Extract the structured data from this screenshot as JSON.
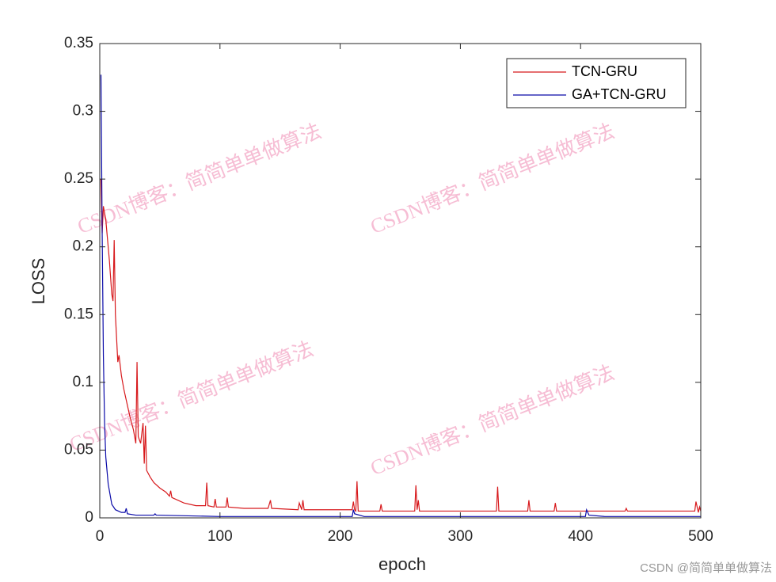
{
  "chart_data": {
    "type": "line",
    "xlabel": "epoch",
    "ylabel": "LOSS",
    "xlim": [
      0,
      500
    ],
    "xticks": [
      0,
      100,
      200,
      300,
      400,
      500
    ],
    "ylim": [
      0,
      0.35
    ],
    "yticks": [
      0,
      0.05,
      0.1,
      0.15,
      0.2,
      0.25,
      0.3,
      0.35
    ],
    "legend": "upper right",
    "series": [
      {
        "name": "TCN-GRU",
        "color": "#d7191c",
        "x": [
          1,
          2,
          3,
          5,
          8,
          10,
          11,
          12,
          13,
          15,
          16,
          18,
          20,
          25,
          28,
          30,
          31,
          32,
          34,
          36,
          37,
          38,
          39,
          42,
          45,
          50,
          55,
          58,
          59,
          60,
          70,
          80,
          88,
          89,
          90,
          95,
          96,
          97,
          105,
          106,
          107,
          120,
          140,
          142,
          143,
          165,
          166,
          168,
          169,
          170,
          210,
          211,
          212,
          213,
          214,
          215,
          233,
          234,
          235,
          262,
          263,
          264,
          265,
          266,
          330,
          331,
          332,
          356,
          357,
          358,
          378,
          379,
          380,
          437,
          438,
          439,
          495,
          496,
          498,
          499,
          500
        ],
        "values": [
          0.25,
          0.21,
          0.23,
          0.22,
          0.19,
          0.165,
          0.16,
          0.205,
          0.15,
          0.115,
          0.12,
          0.105,
          0.095,
          0.075,
          0.065,
          0.055,
          0.115,
          0.06,
          0.055,
          0.07,
          0.04,
          0.068,
          0.035,
          0.03,
          0.026,
          0.022,
          0.019,
          0.016,
          0.02,
          0.015,
          0.011,
          0.009,
          0.009,
          0.026,
          0.009,
          0.008,
          0.014,
          0.008,
          0.008,
          0.015,
          0.008,
          0.007,
          0.007,
          0.013,
          0.007,
          0.006,
          0.011,
          0.006,
          0.013,
          0.006,
          0.006,
          0.012,
          0.006,
          0.005,
          0.027,
          0.005,
          0.005,
          0.01,
          0.005,
          0.005,
          0.024,
          0.006,
          0.013,
          0.005,
          0.005,
          0.023,
          0.005,
          0.005,
          0.013,
          0.005,
          0.005,
          0.011,
          0.005,
          0.005,
          0.007,
          0.005,
          0.005,
          0.012,
          0.004,
          0.008,
          0.005
        ]
      },
      {
        "name": "GA+TCN-GRU",
        "color": "#0a0aa8",
        "x": [
          1,
          2,
          3,
          4,
          5,
          7,
          10,
          13,
          18,
          21,
          22,
          23,
          30,
          45,
          46,
          47,
          100,
          210,
          211,
          212,
          220,
          404,
          405,
          407,
          420,
          500
        ],
        "values": [
          0.327,
          0.21,
          0.12,
          0.07,
          0.045,
          0.025,
          0.01,
          0.006,
          0.004,
          0.004,
          0.007,
          0.003,
          0.002,
          0.002,
          0.003,
          0.002,
          0.001,
          0.001,
          0.006,
          0.003,
          0.001,
          0.001,
          0.006,
          0.002,
          0.001,
          0.001
        ]
      }
    ],
    "watermarks": [
      "CSDN博客：简简单单做算法",
      "CSDN博客：简简单单做算法",
      "CSDN博客：简简单单做算法",
      "CSDN博客：简简单单做算法"
    ],
    "credit": "CSDN @简简单单做算法"
  }
}
